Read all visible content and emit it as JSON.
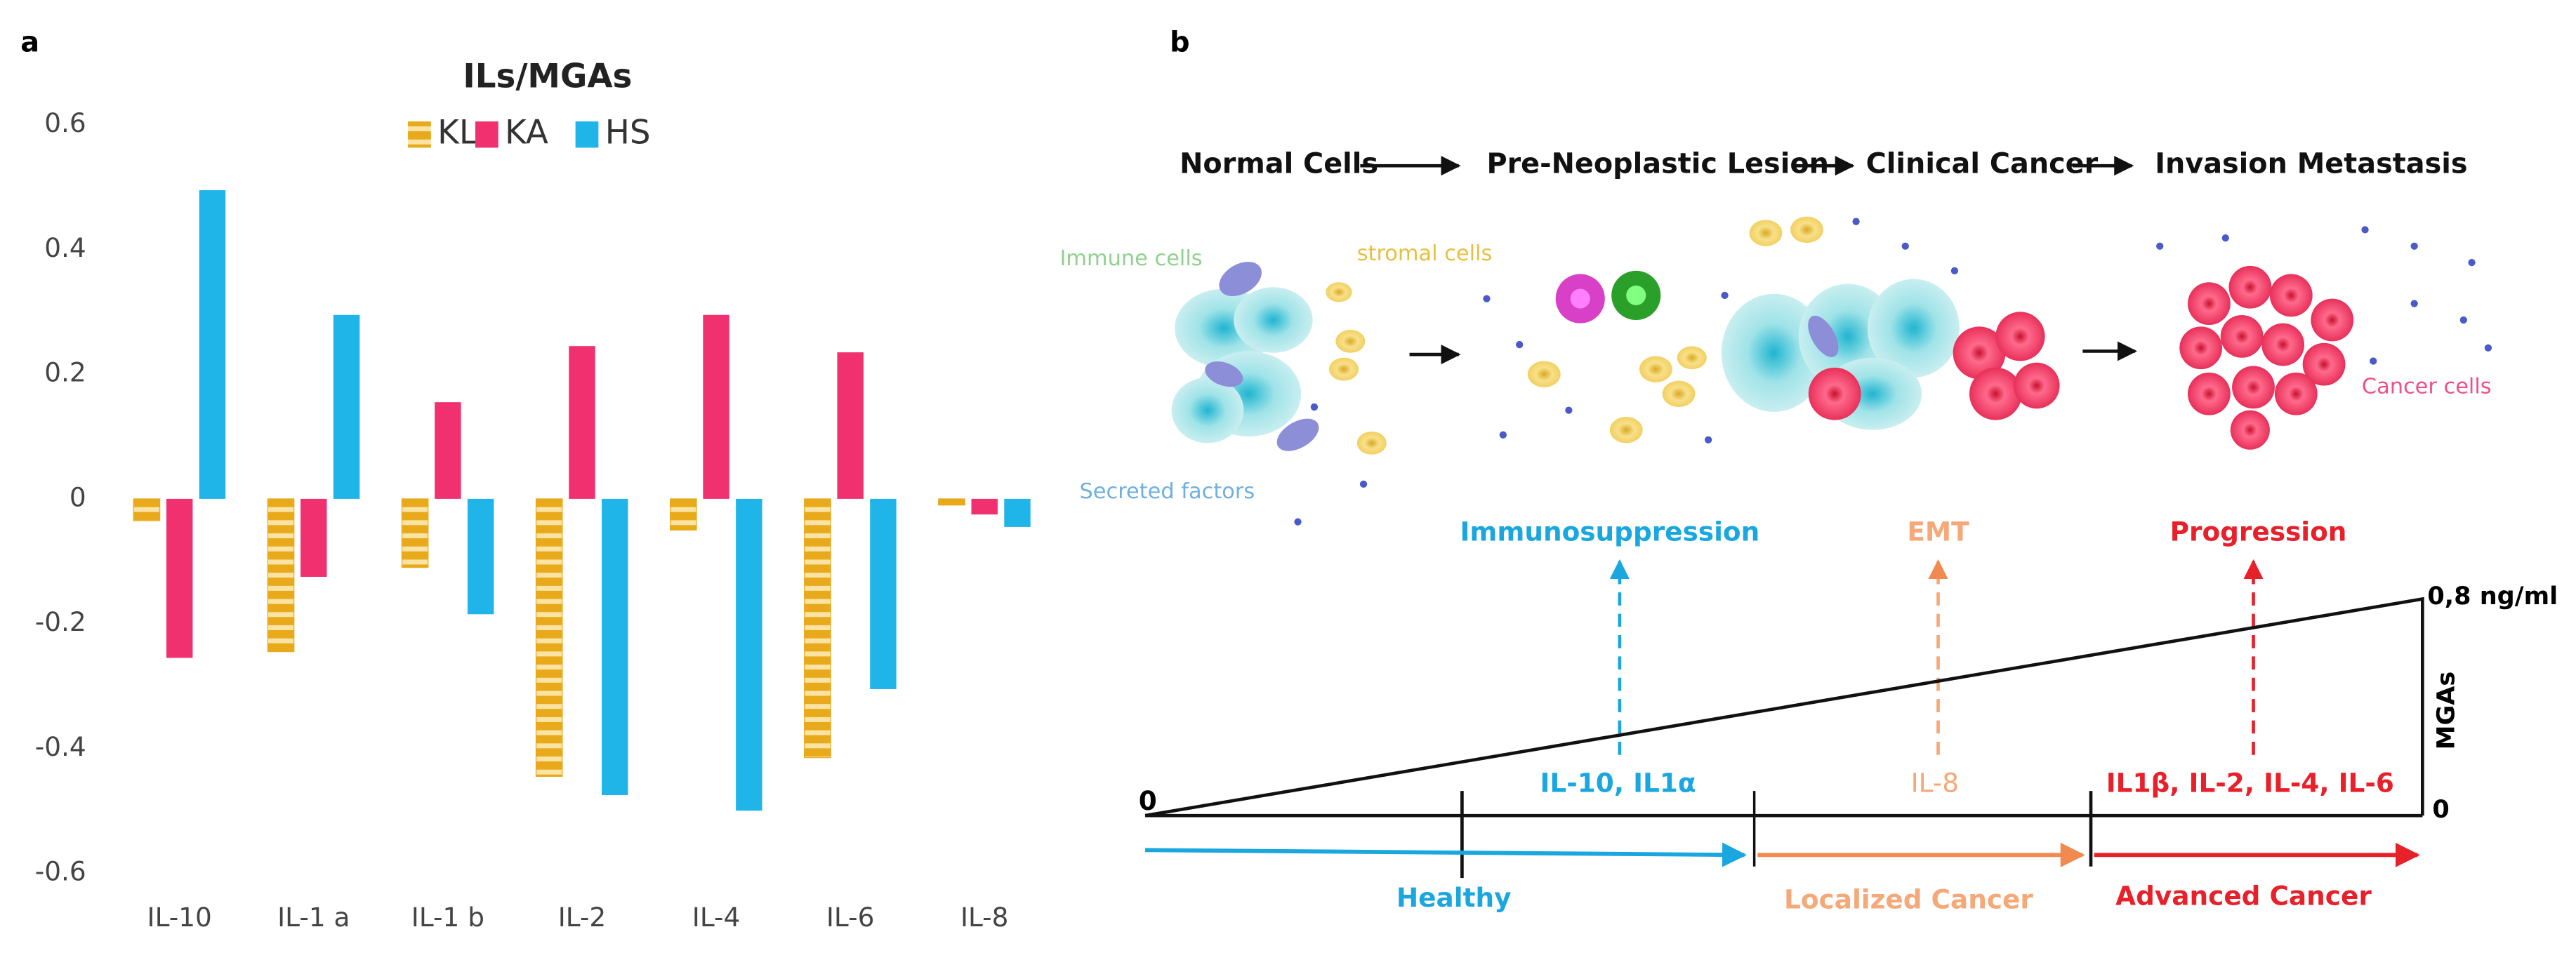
{
  "chart_data": {
    "type": "bar",
    "label": "a",
    "title": "ILs/MGAs",
    "categories": [
      "IL-10",
      "IL-1 a",
      "IL-1 b",
      "IL-2",
      "IL-4",
      "IL-6",
      "IL-8"
    ],
    "series": [
      {
        "name": "KL",
        "color": "#e8a91a",
        "values": [
          -0.035,
          -0.245,
          -0.11,
          -0.445,
          -0.05,
          -0.415,
          -0.01
        ]
      },
      {
        "name": "KA",
        "color": "#f0306f",
        "values": [
          -0.255,
          -0.125,
          0.155,
          0.245,
          0.295,
          0.235,
          -0.025
        ]
      },
      {
        "name": "HS",
        "color": "#1fb5e8",
        "values": [
          0.495,
          0.295,
          -0.185,
          -0.475,
          -0.5,
          -0.305,
          -0.045
        ]
      }
    ],
    "ylim": [
      -0.6,
      0.6
    ],
    "yticks": [
      -0.6,
      -0.4,
      -0.2,
      0,
      0.2,
      0.4,
      0.6
    ],
    "grid": false
  },
  "diagram": {
    "label": "b",
    "stages": [
      "Normal Cells",
      "Pre-Neoplastic Lesion",
      "Clinical Cancer",
      "Invasion Metastasis"
    ],
    "cell_labels": [
      "Immune cells",
      "stromal cells",
      "Secreted factors",
      "Cancer cells"
    ],
    "effects": [
      "Immunosuppression",
      "EMT",
      "Progression"
    ],
    "markers": [
      "IL-10, IL1α",
      "IL-8",
      "IL1β, IL-2, IL-4, IL-6"
    ],
    "axis": {
      "start": "0",
      "top": "0,8 ng/ml",
      "name": "MGAs",
      "bottom": "0"
    },
    "phases": [
      "Healthy",
      "Localized Cancer",
      "Advanced Cancer"
    ]
  }
}
